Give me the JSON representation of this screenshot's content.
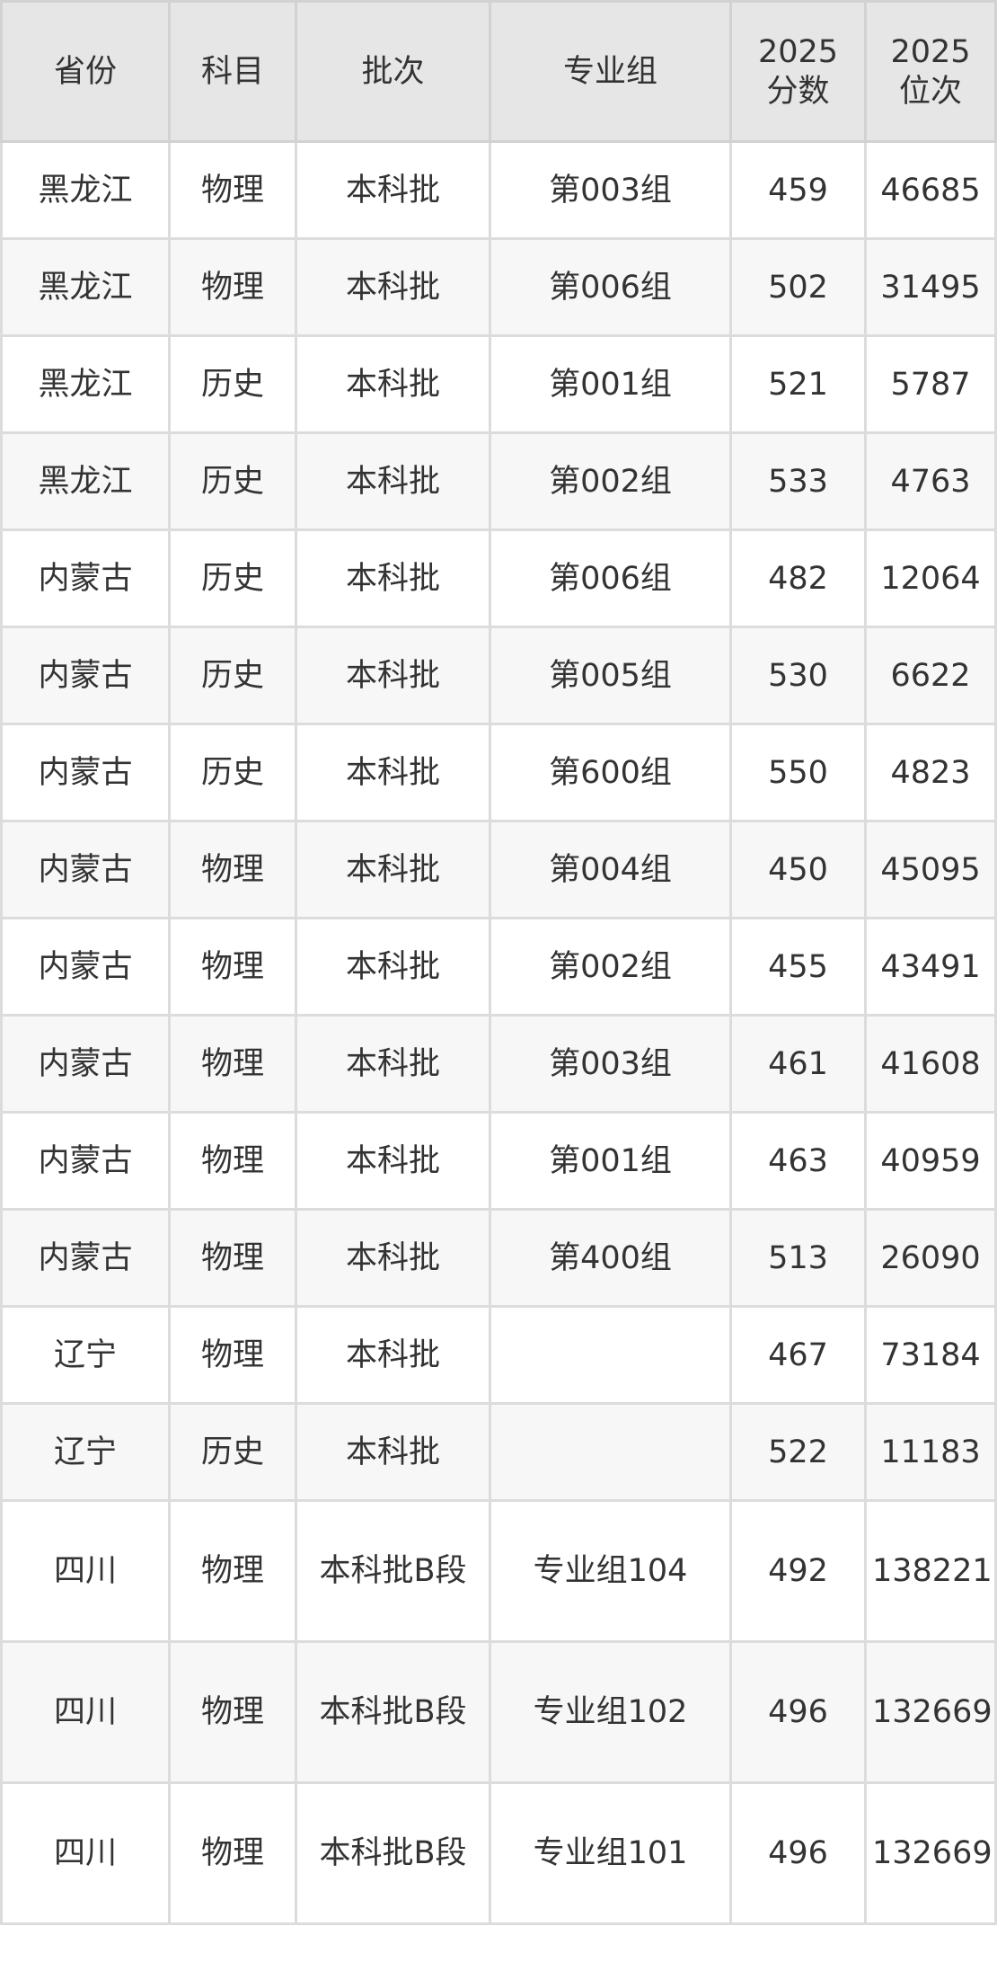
{
  "table": {
    "headers": [
      "省份",
      "科目",
      "批次",
      "专业组",
      "2025\n分数",
      "2025\n位次"
    ],
    "header_lines": [
      [
        "省份"
      ],
      [
        "科目"
      ],
      [
        "批次"
      ],
      [
        "专业组"
      ],
      [
        "2025",
        "分数"
      ],
      [
        "2025",
        "位次"
      ]
    ],
    "rows": [
      [
        "黑龙江",
        "物理",
        "本科批",
        "第003组",
        "459",
        "46685"
      ],
      [
        "黑龙江",
        "物理",
        "本科批",
        "第006组",
        "502",
        "31495"
      ],
      [
        "黑龙江",
        "历史",
        "本科批",
        "第001组",
        "521",
        "5787"
      ],
      [
        "黑龙江",
        "历史",
        "本科批",
        "第002组",
        "533",
        "4763"
      ],
      [
        "内蒙古",
        "历史",
        "本科批",
        "第006组",
        "482",
        "12064"
      ],
      [
        "内蒙古",
        "历史",
        "本科批",
        "第005组",
        "530",
        "6622"
      ],
      [
        "内蒙古",
        "历史",
        "本科批",
        "第600组",
        "550",
        "4823"
      ],
      [
        "内蒙古",
        "物理",
        "本科批",
        "第004组",
        "450",
        "45095"
      ],
      [
        "内蒙古",
        "物理",
        "本科批",
        "第002组",
        "455",
        "43491"
      ],
      [
        "内蒙古",
        "物理",
        "本科批",
        "第003组",
        "461",
        "41608"
      ],
      [
        "内蒙古",
        "物理",
        "本科批",
        "第001组",
        "463",
        "40959"
      ],
      [
        "内蒙古",
        "物理",
        "本科批",
        "第400组",
        "513",
        "26090"
      ],
      [
        "辽宁",
        "物理",
        "本科批",
        "",
        "467",
        "73184"
      ],
      [
        "辽宁",
        "历史",
        "本科批",
        "",
        "522",
        "11183"
      ],
      [
        "四川",
        "物理",
        "本科批B段",
        "专业组104",
        "492",
        "138221"
      ],
      [
        "四川",
        "物理",
        "本科批B段",
        "专业组102",
        "496",
        "132669"
      ],
      [
        "四川",
        "物理",
        "本科批B段",
        "专业组101",
        "496",
        "132669"
      ]
    ]
  }
}
